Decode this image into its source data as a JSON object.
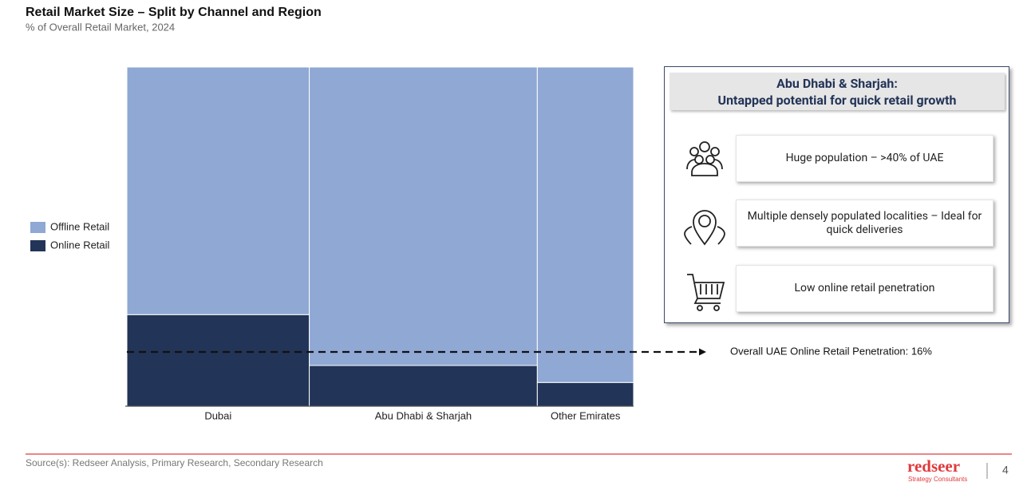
{
  "chart_data": {
    "type": "marimekko",
    "title": "Retail Market Size – Split by Channel and Region",
    "subtitle": "% of Overall Retail Market, 2024",
    "categories": [
      "Dubai",
      "Abu Dhabi & Sharjah",
      "Other Emirates"
    ],
    "widths": [
      36,
      45,
      19
    ],
    "series": [
      {
        "name": "Offline Retail",
        "color": "#8fa8d4",
        "values": [
          73,
          88,
          93
        ]
      },
      {
        "name": "Online Retail",
        "color": "#223457",
        "values": [
          27,
          12,
          7
        ]
      }
    ],
    "ylim": [
      0,
      100
    ],
    "reference_line": {
      "value": 16,
      "label": "Overall UAE Online Retail Penetration: 16%"
    }
  },
  "callout": {
    "title": [
      "Abu Dhabi & Sharjah:",
      "Untapped potential for quick retail growth"
    ],
    "items": [
      "Huge population – >40% of UAE",
      "Multiple densely populated localities – Ideal for quick deliveries",
      "Low online retail penetration"
    ]
  },
  "footer": {
    "source": "Source(s): Redseer Analysis, Primary Research, Secondary Research",
    "logo": "redseer",
    "logo_sub": "Strategy Consultants",
    "page_number": "4"
  }
}
